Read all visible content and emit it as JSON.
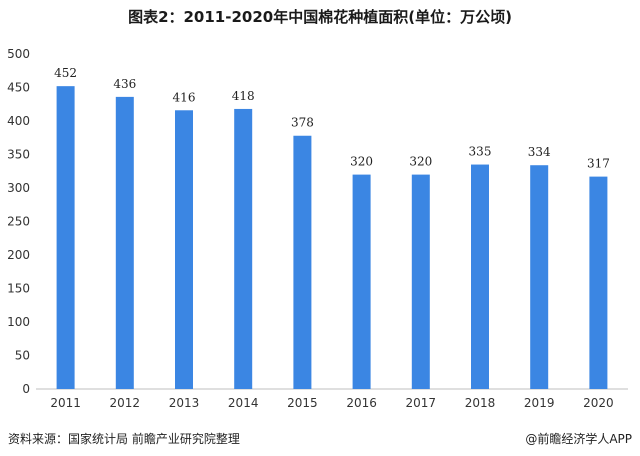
{
  "title": "图表2：2011-2020年中国棉花种植面积(单位：万公顷)",
  "footer": {
    "source": "资料来源：国家统计局 前瞻产业研究院整理",
    "credit": "@前瞻经济学人APP"
  },
  "colors": {
    "bar": "#3b86e3",
    "axis": "#bfbfbf"
  },
  "chart_data": {
    "type": "bar",
    "title": "图表2：2011-2020年中国棉花种植面积(单位：万公顷)",
    "xlabel": "",
    "ylabel": "",
    "categories": [
      "2011",
      "2012",
      "2013",
      "2014",
      "2015",
      "2016",
      "2017",
      "2018",
      "2019",
      "2020"
    ],
    "values": [
      452,
      436,
      416,
      418,
      378,
      320,
      320,
      335,
      334,
      317
    ],
    "ylim": [
      0,
      500
    ],
    "yticks": [
      0,
      50,
      100,
      150,
      200,
      250,
      300,
      350,
      400,
      450,
      500
    ],
    "grid": false,
    "legend": "none"
  }
}
